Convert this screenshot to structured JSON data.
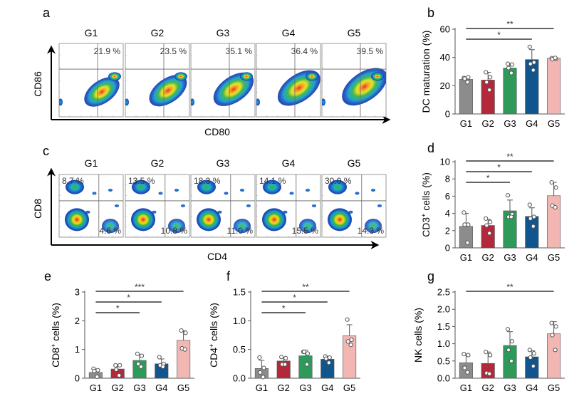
{
  "colors": {
    "G1": "#8c8c8c",
    "G2": "#b3283a",
    "G3": "#2e9a5a",
    "G4": "#11558f",
    "G5": "#f2b6b3"
  },
  "flow_panels": [
    {
      "panel_label": "a",
      "x_marker": "CD80",
      "y_marker": "CD86",
      "groups": [
        {
          "name": "G1",
          "labels": [
            {
              "text": "21.9 %",
              "pos": "upper-right"
            }
          ]
        },
        {
          "name": "G2",
          "labels": [
            {
              "text": "23.5 %",
              "pos": "upper-right"
            }
          ]
        },
        {
          "name": "G3",
          "labels": [
            {
              "text": "35.1 %",
              "pos": "upper-right"
            }
          ]
        },
        {
          "name": "G4",
          "labels": [
            {
              "text": "36.4 %",
              "pos": "upper-right"
            }
          ]
        },
        {
          "name": "G5",
          "labels": [
            {
              "text": "39.5 %",
              "pos": "upper-right"
            }
          ]
        }
      ]
    },
    {
      "panel_label": "c",
      "x_marker": "CD4",
      "y_marker": "CD8",
      "groups": [
        {
          "name": "G1",
          "labels": [
            {
              "text": "8.7 %",
              "pos": "upper-left"
            },
            {
              "text": "4.6 %",
              "pos": "lower-right"
            }
          ]
        },
        {
          "name": "G2",
          "labels": [
            {
              "text": "13.5 %",
              "pos": "upper-left"
            },
            {
              "text": "10.8 %",
              "pos": "lower-right"
            }
          ]
        },
        {
          "name": "G3",
          "labels": [
            {
              "text": "18.3 %",
              "pos": "upper-left"
            },
            {
              "text": "11.0 %",
              "pos": "lower-right"
            }
          ]
        },
        {
          "name": "G4",
          "labels": [
            {
              "text": "14.1 %",
              "pos": "upper-left"
            },
            {
              "text": "15.5 %",
              "pos": "lower-right"
            }
          ]
        },
        {
          "name": "G5",
          "labels": [
            {
              "text": "30.0 %",
              "pos": "upper-left"
            },
            {
              "text": "14.3 %",
              "pos": "lower-right"
            }
          ]
        }
      ]
    }
  ],
  "chart_data": [
    {
      "panel_label": "b",
      "type": "bar",
      "title": "",
      "xlabel": "",
      "ylabel": "DC maturation (%)",
      "ylim": [
        0,
        60
      ],
      "yticks": [
        0,
        20,
        40,
        60
      ],
      "ytick_labels": [
        "0",
        "20",
        "40",
        "60"
      ],
      "grid": false,
      "categories": [
        "G1",
        "G2",
        "G3",
        "G4",
        "G5"
      ],
      "values": [
        24.5,
        24,
        32.5,
        38.5,
        39.5
      ],
      "errors": [
        1.5,
        5.5,
        3.0,
        7.0,
        0.6
      ],
      "points": [
        [
          25.5,
          26,
          25,
          22.5
        ],
        [
          29.5,
          26,
          22.5,
          17
        ],
        [
          35.5,
          35,
          32.5,
          29
        ],
        [
          47.5,
          36.5,
          35.5,
          31
        ],
        [
          39.5,
          39,
          38.8,
          39.7
        ]
      ],
      "significance": [
        {
          "from": "G1",
          "to": "G4",
          "label": "*"
        },
        {
          "from": "G1",
          "to": "G5",
          "label": "**"
        }
      ]
    },
    {
      "panel_label": "d",
      "type": "bar",
      "title": "",
      "xlabel": "",
      "ylabel": "CD3+ cells (%)",
      "ylabel_main": "CD3",
      "ylabel_sup": "+",
      "ylabel_rest": " cells (%)",
      "ylim": [
        0,
        10
      ],
      "yticks": [
        0,
        2,
        4,
        6,
        8,
        10
      ],
      "ytick_labels": [
        "0",
        "2",
        "4",
        "6",
        "8",
        "10"
      ],
      "grid": false,
      "categories": [
        "G1",
        "G2",
        "G3",
        "G4",
        "G5"
      ],
      "values": [
        2.5,
        2.6,
        4.3,
        3.65,
        6.05
      ],
      "errors": [
        1.5,
        0.7,
        1.25,
        1.0,
        1.55
      ],
      "points": [
        [
          4.1,
          2.7,
          2.7,
          0.6
        ],
        [
          3.4,
          3.0,
          2.6,
          1.7
        ],
        [
          6.1,
          3.9,
          3.6,
          3.6
        ],
        [
          5.0,
          3.6,
          3.4,
          2.5
        ],
        [
          7.6,
          7.0,
          4.9,
          4.7
        ]
      ],
      "significance": [
        {
          "from": "G1",
          "to": "G3",
          "label": "*"
        },
        {
          "from": "G1",
          "to": "G4",
          "label": "*"
        },
        {
          "from": "G1",
          "to": "G5",
          "label": "**"
        }
      ]
    },
    {
      "panel_label": "e",
      "type": "bar",
      "title": "",
      "xlabel": "",
      "ylabel": "CD8+ cells (%)",
      "ylabel_main": "CD8",
      "ylabel_sup": "+",
      "ylabel_rest": " cells (%)",
      "ylim": [
        0,
        3
      ],
      "yticks": [
        0,
        1,
        2,
        3
      ],
      "ytick_labels": [
        "0",
        "1",
        "2",
        "3"
      ],
      "grid": false,
      "categories": [
        "G1",
        "G2",
        "G3",
        "G4",
        "G5"
      ],
      "values": [
        0.2,
        0.32,
        0.62,
        0.5,
        1.32
      ],
      "errors": [
        0.12,
        0.15,
        0.2,
        0.17,
        0.33
      ],
      "points": [
        [
          0.33,
          0.28,
          0.25,
          0.05
        ],
        [
          0.45,
          0.45,
          0.3,
          0.1
        ],
        [
          0.85,
          0.78,
          0.5,
          0.4
        ],
        [
          0.73,
          0.5,
          0.45,
          0.4
        ],
        [
          1.66,
          1.58,
          1.04,
          1.0
        ]
      ],
      "significance": [
        {
          "from": "G1",
          "to": "G3",
          "label": "*"
        },
        {
          "from": "G1",
          "to": "G4",
          "label": "*"
        },
        {
          "from": "G1",
          "to": "G5",
          "label": "***"
        }
      ]
    },
    {
      "panel_label": "f",
      "type": "bar",
      "title": "",
      "xlabel": "",
      "ylabel": "CD4+ cells (%)",
      "ylabel_main": "CD4",
      "ylabel_sup": "+",
      "ylabel_rest": " cells (%)",
      "ylim": [
        0,
        1.5
      ],
      "yticks": [
        0,
        0.5,
        1.0,
        1.5
      ],
      "ytick_labels": [
        "0.0",
        "0.5",
        "1.0",
        "1.5"
      ],
      "grid": false,
      "categories": [
        "G1",
        "G2",
        "G3",
        "G4",
        "G5"
      ],
      "values": [
        0.17,
        0.3,
        0.39,
        0.33,
        0.74
      ],
      "errors": [
        0.14,
        0.06,
        0.1,
        0.05,
        0.19
      ],
      "points": [
        [
          0.36,
          0.18,
          0.1,
          0.02
        ],
        [
          0.37,
          0.35,
          0.24,
          0.24
        ],
        [
          0.46,
          0.43,
          0.46,
          0.24
        ],
        [
          0.38,
          0.36,
          0.34,
          0.27
        ],
        [
          1.02,
          0.67,
          0.64,
          0.58
        ]
      ],
      "significance": [
        {
          "from": "G1",
          "to": "G3",
          "label": "*"
        },
        {
          "from": "G1",
          "to": "G4",
          "label": "*"
        },
        {
          "from": "G1",
          "to": "G5",
          "label": "**"
        }
      ]
    },
    {
      "panel_label": "g",
      "type": "bar",
      "title": "",
      "xlabel": "",
      "ylabel": "NK cells (%)",
      "ylim": [
        0,
        2.5
      ],
      "yticks": [
        0,
        0.5,
        1.0,
        1.5,
        2.0,
        2.5
      ],
      "ytick_labels": [
        "0.0",
        "0.5",
        "1.0",
        "1.5",
        "2.0",
        "2.5"
      ],
      "grid": false,
      "categories": [
        "G1",
        "G2",
        "G3",
        "G4",
        "G5"
      ],
      "values": [
        0.45,
        0.43,
        0.95,
        0.62,
        1.29
      ],
      "errors": [
        0.25,
        0.33,
        0.4,
        0.18,
        0.35
      ],
      "points": [
        [
          0.7,
          0.67,
          0.3,
          0.17
        ],
        [
          0.76,
          0.67,
          0.15,
          0.13
        ],
        [
          1.42,
          1.07,
          0.82,
          0.5
        ],
        [
          0.82,
          0.72,
          0.6,
          0.35
        ],
        [
          1.6,
          1.5,
          1.25,
          0.82
        ]
      ],
      "significance": [
        {
          "from": "G1",
          "to": "G5",
          "label": "**"
        }
      ]
    }
  ]
}
